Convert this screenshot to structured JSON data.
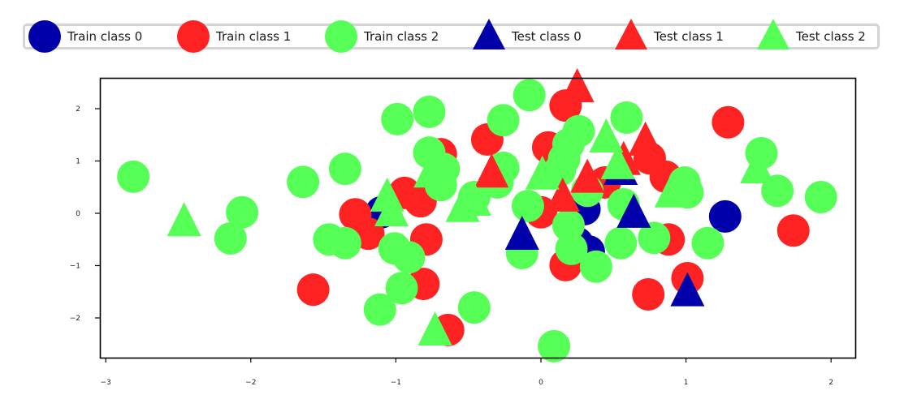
{
  "chart_data": {
    "type": "scatter",
    "title": "",
    "xlabel": "",
    "ylabel": "",
    "xlim": [
      -3.04,
      2.16
    ],
    "ylim": [
      -2.77,
      2.57
    ],
    "xticks": [
      -3,
      -2,
      -1,
      0,
      1,
      2
    ],
    "yticks": [
      -2,
      -1,
      0,
      1,
      2
    ],
    "xtick_labels": [
      "−3",
      "−2",
      "−1",
      "0",
      "1",
      "2"
    ],
    "ytick_labels": [
      "−2",
      "−1",
      "0",
      "1",
      "2"
    ],
    "grid": false,
    "legend_position": "top, outside axes, horizontal",
    "series": [
      {
        "name": "Train class 0",
        "marker": "circle",
        "color": "#0000aa",
        "points": [
          [
            -1.1,
            0.02
          ],
          [
            0.3,
            0.08
          ],
          [
            0.33,
            -0.73
          ],
          [
            0.25,
            -0.57
          ],
          [
            1.27,
            -0.06
          ]
        ]
      },
      {
        "name": "Train class 1",
        "marker": "circle",
        "color": "#ff2222",
        "points": [
          [
            -1.28,
            -0.02
          ],
          [
            -1.19,
            -0.39
          ],
          [
            -1.57,
            -1.46
          ],
          [
            -0.94,
            0.39
          ],
          [
            -0.83,
            0.23
          ],
          [
            -0.79,
            -0.5
          ],
          [
            -0.81,
            -1.35
          ],
          [
            -0.64,
            -2.23
          ],
          [
            -0.69,
            1.13
          ],
          [
            -0.37,
            1.41
          ],
          [
            0.0,
            0.02
          ],
          [
            0.05,
            1.26
          ],
          [
            0.17,
            2.06
          ],
          [
            0.17,
            -0.99
          ],
          [
            0.75,
            1.05
          ],
          [
            0.86,
            0.7
          ],
          [
            0.88,
            -0.5
          ],
          [
            0.74,
            -1.55
          ],
          [
            1.01,
            -1.24
          ],
          [
            1.29,
            1.74
          ],
          [
            1.74,
            -0.33
          ],
          [
            0.44,
            0.59
          ]
        ]
      },
      {
        "name": "Train class 2",
        "marker": "circle",
        "color": "#55ff55",
        "points": [
          [
            -2.81,
            0.7
          ],
          [
            -2.06,
            0.02
          ],
          [
            -2.14,
            -0.48
          ],
          [
            -1.64,
            0.6
          ],
          [
            -1.35,
            0.85
          ],
          [
            -1.46,
            -0.5
          ],
          [
            -1.35,
            -0.57
          ],
          [
            -0.99,
            1.8
          ],
          [
            -0.77,
            1.94
          ],
          [
            -0.77,
            1.16
          ],
          [
            -0.67,
            0.85
          ],
          [
            -0.69,
            0.54
          ],
          [
            -1.01,
            -0.67
          ],
          [
            -0.91,
            -0.84
          ],
          [
            -0.96,
            -1.43
          ],
          [
            -1.11,
            -1.84
          ],
          [
            -0.46,
            -1.8
          ],
          [
            -0.46,
            0.31
          ],
          [
            -0.26,
            1.78
          ],
          [
            -0.26,
            0.87
          ],
          [
            -0.3,
            0.59
          ],
          [
            -0.08,
            2.26
          ],
          [
            -0.09,
            0.14
          ],
          [
            -0.13,
            -0.76
          ],
          [
            0.09,
            -2.54
          ],
          [
            0.26,
            1.57
          ],
          [
            0.19,
            1.32
          ],
          [
            0.16,
            1.04
          ],
          [
            0.13,
            0.82
          ],
          [
            0.19,
            -0.23
          ],
          [
            0.21,
            -0.68
          ],
          [
            0.38,
            -1.02
          ],
          [
            0.32,
            0.43
          ],
          [
            0.59,
            1.83
          ],
          [
            0.57,
            0.17
          ],
          [
            0.55,
            -0.57
          ],
          [
            0.78,
            -0.47
          ],
          [
            0.99,
            0.59
          ],
          [
            1.01,
            0.4
          ],
          [
            1.15,
            -0.57
          ],
          [
            1.52,
            1.15
          ],
          [
            1.63,
            0.43
          ],
          [
            1.93,
            0.31
          ]
        ]
      },
      {
        "name": "Test class 0",
        "marker": "triangle",
        "color": "#0000aa",
        "points": [
          [
            -0.13,
            -0.45
          ],
          [
            0.55,
            0.79
          ],
          [
            0.64,
            -0.03
          ],
          [
            1.01,
            -1.53
          ]
        ]
      },
      {
        "name": "Test class 1",
        "marker": "triangle",
        "color": "#ff2222",
        "points": [
          [
            0.25,
            2.37
          ],
          [
            -0.34,
            0.74
          ],
          [
            0.32,
            0.64
          ],
          [
            0.15,
            0.28
          ],
          [
            0.57,
            0.98
          ],
          [
            0.72,
            1.35
          ]
        ]
      },
      {
        "name": "Test class 2",
        "marker": "triangle",
        "color": "#55ff55",
        "points": [
          [
            -2.46,
            -0.19
          ],
          [
            -1.06,
            0.28
          ],
          [
            -1.03,
            0.0
          ],
          [
            -0.73,
            -2.28
          ],
          [
            -0.54,
            0.08
          ],
          [
            -0.46,
            0.2
          ],
          [
            0.01,
            0.7
          ],
          [
            0.45,
            1.41
          ],
          [
            0.53,
            0.9
          ],
          [
            0.9,
            0.36
          ],
          [
            1.49,
            0.82
          ],
          [
            -0.76,
            0.74
          ]
        ]
      }
    ]
  },
  "legend": {
    "items": [
      {
        "label": "Train class 0",
        "marker": "circle",
        "color": "#0000aa"
      },
      {
        "label": "Train class 1",
        "marker": "circle",
        "color": "#ff2222"
      },
      {
        "label": "Train class 2",
        "marker": "circle",
        "color": "#55ff55"
      },
      {
        "label": "Test class 0",
        "marker": "triangle",
        "color": "#0000aa"
      },
      {
        "label": "Test class 1",
        "marker": "triangle",
        "color": "#ff2222"
      },
      {
        "label": "Test class 2",
        "marker": "triangle",
        "color": "#55ff55"
      }
    ]
  }
}
